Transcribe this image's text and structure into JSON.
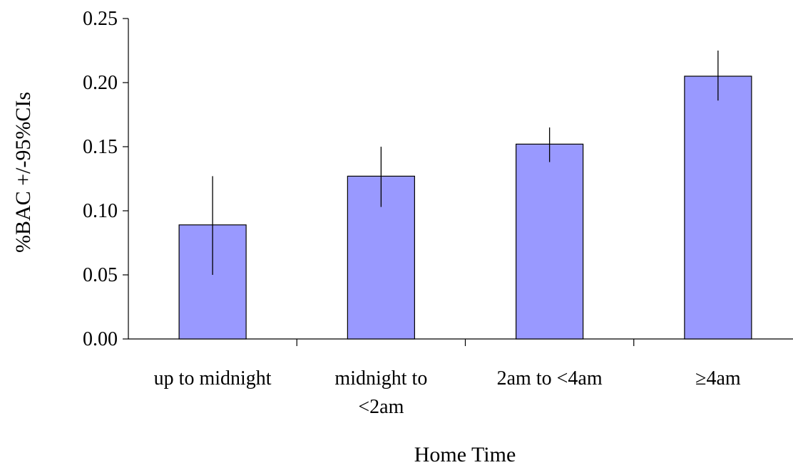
{
  "chart_data": {
    "type": "bar",
    "title": "",
    "xlabel": "Home Time",
    "ylabel": "%BAC +/-95%CIs",
    "categories": [
      [
        "up to midnight"
      ],
      [
        "midnight to",
        "<2am"
      ],
      [
        "2am to <4am"
      ],
      [
        "≥4am"
      ]
    ],
    "values": [
      0.089,
      0.127,
      0.152,
      0.205
    ],
    "ci_low": [
      0.05,
      0.103,
      0.138,
      0.186
    ],
    "ci_high": [
      0.127,
      0.15,
      0.165,
      0.225
    ],
    "ylim": [
      0,
      0.25
    ],
    "yticks": [
      0,
      0.05,
      0.1,
      0.15,
      0.2,
      0.25
    ],
    "ytick_labels": [
      "0.00",
      "0.05",
      "0.10",
      "0.15",
      "0.20",
      "0.25"
    ],
    "grid": false,
    "legend": "none",
    "bar_color": "#9999ff"
  }
}
